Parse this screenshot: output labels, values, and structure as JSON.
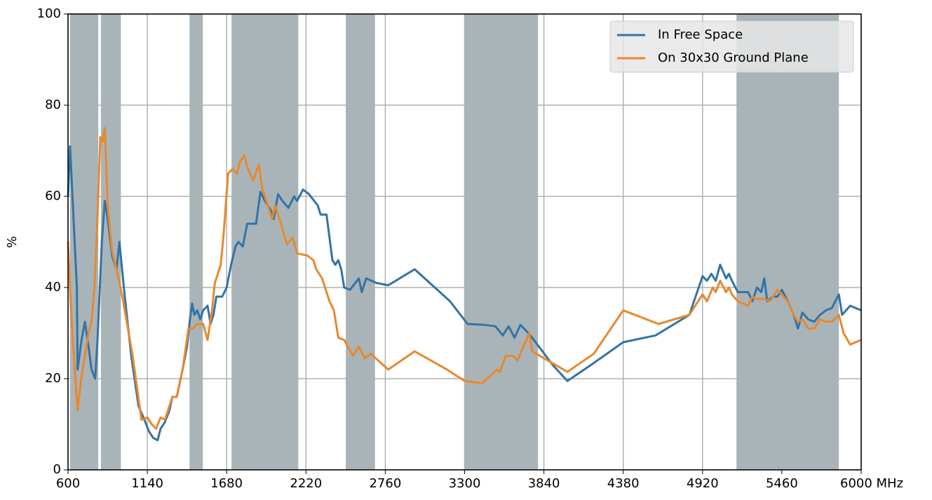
{
  "chart_data": {
    "type": "line",
    "ylabel": "%",
    "xlim": [
      600,
      6000
    ],
    "ylim": [
      0,
      100
    ],
    "xticks": [
      600,
      1140,
      1680,
      2220,
      2760,
      3300,
      3840,
      4380,
      4920,
      5460,
      {
        "value": 6000,
        "label": "6000 MHz"
      }
    ],
    "yticks": [
      0,
      20,
      40,
      60,
      80,
      100
    ],
    "grid": true,
    "legend": "upper right",
    "band_color": "#a9b4b9",
    "bands": [
      [
        614,
        806
      ],
      [
        824,
        960
      ],
      [
        1427,
        1518
      ],
      [
        1713,
        2168
      ],
      [
        2491,
        2690
      ],
      [
        3298,
        3800
      ],
      [
        5151,
        5848
      ]
    ],
    "series": [
      {
        "name": "In Free Space",
        "color": "#3274a6",
        "x": [
          600,
          614,
          660,
          665,
          690,
          715,
          740,
          760,
          785,
          800,
          830,
          850,
          870,
          900,
          930,
          950,
          980,
          1030,
          1080,
          1120,
          1150,
          1180,
          1210,
          1230,
          1260,
          1290,
          1310,
          1340,
          1380,
          1410,
          1430,
          1445,
          1460,
          1480,
          1500,
          1520,
          1550,
          1570,
          1590,
          1610,
          1650,
          1680,
          1710,
          1740,
          1760,
          1790,
          1820,
          1880,
          1910,
          1940,
          1980,
          2000,
          2030,
          2060,
          2100,
          2140,
          2160,
          2200,
          2240,
          2300,
          2320,
          2360,
          2400,
          2420,
          2440,
          2460,
          2480,
          2520,
          2580,
          2600,
          2630,
          2700,
          2780,
          2960,
          3200,
          3320,
          3440,
          3510,
          3560,
          3600,
          3640,
          3680,
          3720,
          3760,
          3900,
          4000,
          4160,
          4380,
          4600,
          4830,
          4920,
          4950,
          4980,
          5010,
          5040,
          5080,
          5100,
          5120,
          5160,
          5230,
          5260,
          5290,
          5320,
          5340,
          5360,
          5400,
          5430,
          5460,
          5500,
          5540,
          5570,
          5600,
          5640,
          5680,
          5720,
          5760,
          5800,
          5848,
          5870,
          5925,
          6000
        ],
        "values": [
          60,
          71,
          40,
          22,
          28,
          32.5,
          27,
          22,
          20,
          28,
          50,
          59,
          55,
          47,
          44,
          50,
          40,
          25,
          14,
          11,
          8.5,
          7,
          6.5,
          9,
          10.5,
          13,
          16,
          16,
          22,
          27,
          33,
          36.5,
          34,
          35,
          33,
          35,
          36,
          32,
          34,
          38,
          38,
          40,
          45,
          49,
          50,
          49,
          54,
          54,
          61,
          59,
          57,
          55,
          60.5,
          59,
          57.5,
          60,
          59,
          61.5,
          60.5,
          58,
          56,
          56,
          46,
          45,
          46,
          44,
          40,
          39.5,
          42,
          39,
          42,
          41,
          40.5,
          44,
          37,
          32,
          31.8,
          31.5,
          29.5,
          31.5,
          29,
          31.8,
          30.5,
          29,
          23,
          19.5,
          23,
          28,
          29.5,
          34,
          42.5,
          41.5,
          43,
          41.5,
          45,
          42,
          43,
          41.5,
          39,
          39,
          37,
          40,
          39,
          42,
          37,
          38,
          38,
          39.5,
          37,
          34,
          31,
          34.5,
          33,
          32.5,
          34,
          35,
          35.5,
          38.5,
          34,
          36,
          35
        ]
      },
      {
        "name": "On 30x30 Ground Plane",
        "color": "#e8882e",
        "x": [
          600,
          620,
          650,
          665,
          690,
          715,
          740,
          760,
          780,
          800,
          820,
          835,
          850,
          870,
          900,
          930,
          970,
          1040,
          1100,
          1140,
          1170,
          1200,
          1230,
          1260,
          1290,
          1310,
          1340,
          1380,
          1420,
          1450,
          1480,
          1520,
          1550,
          1580,
          1600,
          1640,
          1660,
          1690,
          1720,
          1750,
          1770,
          1800,
          1820,
          1860,
          1900,
          1920,
          1960,
          1990,
          2010,
          2050,
          2090,
          2130,
          2160,
          2230,
          2270,
          2290,
          2330,
          2380,
          2410,
          2440,
          2480,
          2540,
          2580,
          2620,
          2660,
          2780,
          2960,
          3180,
          3300,
          3420,
          3520,
          3540,
          3580,
          3630,
          3660,
          3720,
          3740,
          3760,
          4000,
          4180,
          4380,
          4620,
          4830,
          4920,
          4950,
          4990,
          5010,
          5040,
          5080,
          5100,
          5120,
          5160,
          5230,
          5260,
          5290,
          5340,
          5380,
          5430,
          5500,
          5540,
          5570,
          5600,
          5640,
          5680,
          5720,
          5760,
          5800,
          5848,
          5880,
          5925,
          6000
        ],
        "values": [
          50,
          35,
          20,
          13,
          20,
          25,
          30,
          32.5,
          40,
          55,
          73,
          72,
          75,
          58,
          48,
          44,
          38,
          25,
          11,
          11.5,
          10,
          9,
          11.5,
          11,
          14,
          16,
          16,
          22,
          31,
          31,
          32,
          32,
          28.5,
          35,
          41,
          45,
          52,
          65,
          66,
          65,
          67.5,
          69,
          66.5,
          63.5,
          67,
          62,
          58,
          55,
          58,
          54,
          49.5,
          51,
          47.5,
          47,
          46,
          44,
          42,
          37,
          35,
          29,
          28.5,
          25,
          27,
          24.5,
          25.5,
          22,
          26,
          22,
          19.5,
          19,
          22,
          21.5,
          25,
          25,
          24,
          28.5,
          30,
          26,
          21.5,
          25.5,
          35,
          32,
          34,
          38.5,
          37,
          40,
          39,
          41.5,
          39,
          40,
          38.5,
          37,
          36,
          38,
          37.5,
          37.5,
          37,
          39.5,
          37,
          34,
          32.5,
          33,
          31,
          31,
          33,
          32.5,
          32.5,
          34,
          30,
          27.5,
          28.5
        ]
      }
    ]
  }
}
